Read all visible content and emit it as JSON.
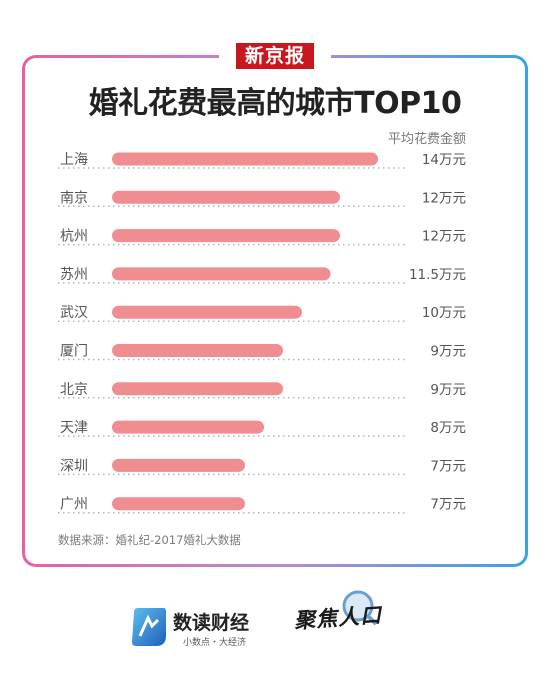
{
  "header": {
    "badge": "新京报"
  },
  "title": "婚礼花费最高的城市TOP10",
  "unit_note": "平均花费金额",
  "chart_data": {
    "type": "bar",
    "orientation": "horizontal",
    "title": "婚礼花费最高的城市TOP10",
    "categories": [
      "上海",
      "南京",
      "杭州",
      "苏州",
      "武汉",
      "厦门",
      "北京",
      "天津",
      "深圳",
      "广州"
    ],
    "values": [
      14,
      12,
      12,
      11.5,
      10,
      9,
      9,
      8,
      7,
      7
    ],
    "value_labels": [
      "14万元",
      "12万元",
      "12万元",
      "11.5万元",
      "10万元",
      "9万元",
      "9万元",
      "8万元",
      "7万元",
      "7万元"
    ],
    "bar_color": "#ef8d90",
    "label_color": "#555555"
  },
  "source": "数据来源：婚礼纪-2017婚礼大数据",
  "footer": {
    "brand1_name": "数读财经",
    "brand1_slogan": "小数点・大经济",
    "brand2_name": "聚焦人口"
  }
}
